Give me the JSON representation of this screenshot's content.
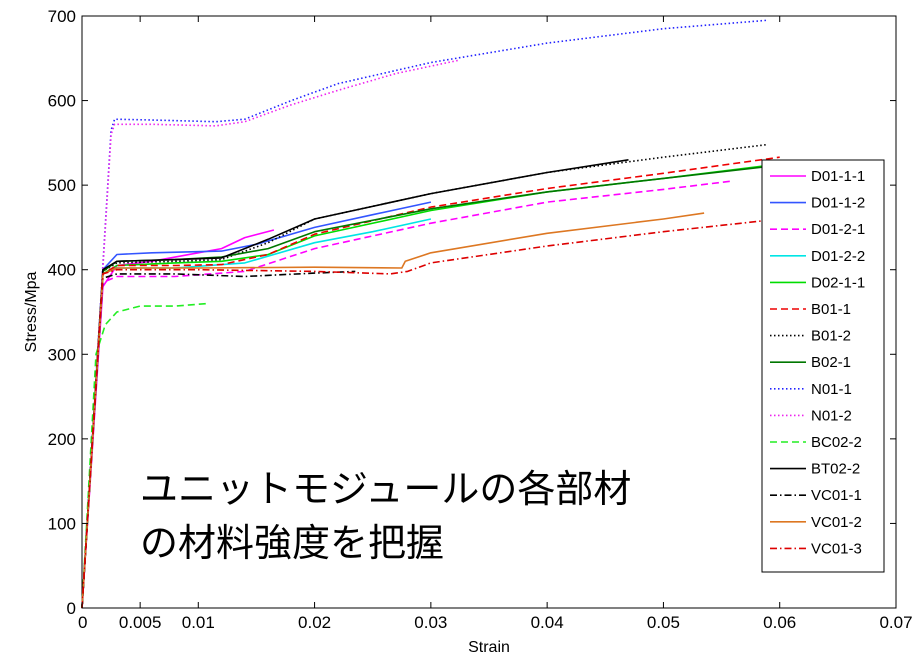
{
  "chart_data": {
    "type": "line",
    "title": "",
    "xlabel": "Strain",
    "ylabel": "Stress/Mpa",
    "xlim": [
      0,
      0.07
    ],
    "ylim": [
      0,
      700
    ],
    "xticks": [
      0,
      0.005,
      0.01,
      0.02,
      0.03,
      0.04,
      0.05,
      0.06,
      0.07
    ],
    "xtick_labels": [
      "0",
      "0.005",
      "0.01",
      "0.02",
      "0.03",
      "0.04",
      "0.05",
      "0.06",
      "0.07"
    ],
    "yticks": [
      0,
      100,
      200,
      300,
      400,
      500,
      600,
      700
    ],
    "ytick_labels": [
      "0",
      "100",
      "200",
      "300",
      "400",
      "500",
      "600",
      "700"
    ],
    "grid": false,
    "legend_position": "right",
    "annotation": [
      "ユニットモジュールの各部材",
      "の材料強度を把握"
    ],
    "series": [
      {
        "name": "D01-1-1",
        "color": "#ff00ff",
        "dash": "solid",
        "x": [
          0,
          0.0018,
          0.003,
          0.006,
          0.01,
          0.012,
          0.014,
          0.0165
        ],
        "y": [
          0,
          380,
          405,
          410,
          420,
          425,
          438,
          447
        ]
      },
      {
        "name": "D01-1-2",
        "color": "#3355ff",
        "dash": "solid",
        "x": [
          0,
          0.0018,
          0.003,
          0.006,
          0.012,
          0.015,
          0.02,
          0.025,
          0.03
        ],
        "y": [
          0,
          400,
          418,
          420,
          422,
          430,
          450,
          465,
          480
        ]
      },
      {
        "name": "D01-2-1",
        "color": "#ff00ff",
        "dash": "dash",
        "x": [
          0,
          0.0018,
          0.003,
          0.008,
          0.014,
          0.02,
          0.03,
          0.04,
          0.05,
          0.056
        ],
        "y": [
          0,
          385,
          392,
          392,
          398,
          425,
          455,
          480,
          495,
          505
        ]
      },
      {
        "name": "D01-2-2",
        "color": "#00e5e5",
        "dash": "solid",
        "x": [
          0,
          0.0018,
          0.003,
          0.008,
          0.014,
          0.02,
          0.025,
          0.03
        ],
        "y": [
          0,
          395,
          402,
          402,
          408,
          432,
          445,
          460
        ]
      },
      {
        "name": "D02-1-1",
        "color": "#00dd00",
        "dash": "solid",
        "x": [
          0,
          0.0018,
          0.003,
          0.008,
          0.012,
          0.016,
          0.02,
          0.03,
          0.04,
          0.05,
          0.06
        ],
        "y": [
          0,
          395,
          405,
          408,
          410,
          418,
          440,
          470,
          492,
          508,
          525
        ]
      },
      {
        "name": "B01-1",
        "color": "#ee0000",
        "dash": "dash",
        "x": [
          0,
          0.0018,
          0.003,
          0.008,
          0.012,
          0.016,
          0.02,
          0.03,
          0.04,
          0.05,
          0.06
        ],
        "y": [
          0,
          395,
          405,
          405,
          406,
          418,
          442,
          474,
          496,
          514,
          533
        ]
      },
      {
        "name": "B01-2",
        "color": "#000000",
        "dash": "dot",
        "x": [
          0,
          0.0018,
          0.003,
          0.008,
          0.012,
          0.016,
          0.02,
          0.03,
          0.04,
          0.05,
          0.059
        ],
        "y": [
          0,
          398,
          408,
          410,
          412,
          432,
          460,
          490,
          515,
          533,
          548
        ]
      },
      {
        "name": "B02-1",
        "color": "#007700",
        "dash": "solid",
        "x": [
          0,
          0.0018,
          0.003,
          0.008,
          0.012,
          0.016,
          0.02,
          0.03,
          0.04,
          0.05,
          0.059
        ],
        "y": [
          0,
          398,
          410,
          412,
          415,
          425,
          445,
          472,
          492,
          508,
          522
        ]
      },
      {
        "name": "N01-1",
        "color": "#2222ff",
        "dash": "dot",
        "x": [
          0,
          0.0025,
          0.0028,
          0.006,
          0.0115,
          0.014,
          0.018,
          0.022,
          0.03,
          0.04,
          0.05,
          0.059
        ],
        "y": [
          0,
          565,
          578,
          577,
          575,
          578,
          600,
          620,
          645,
          668,
          685,
          695
        ]
      },
      {
        "name": "N01-2",
        "color": "#ee22ee",
        "dash": "dot",
        "x": [
          0,
          0.0025,
          0.0028,
          0.006,
          0.0115,
          0.014,
          0.018,
          0.022,
          0.027,
          0.0325
        ],
        "y": [
          0,
          560,
          572,
          572,
          570,
          575,
          595,
          612,
          632,
          648
        ]
      },
      {
        "name": "BC02-2",
        "color": "#22ee22",
        "dash": "dash",
        "x": [
          0,
          0.0012,
          0.002,
          0.003,
          0.005,
          0.008,
          0.0108
        ],
        "y": [
          0,
          300,
          335,
          350,
          357,
          357,
          360
        ]
      },
      {
        "name": "BT02-2",
        "color": "#000000",
        "dash": "solid",
        "x": [
          0,
          0.0018,
          0.003,
          0.008,
          0.012,
          0.016,
          0.02,
          0.03,
          0.04,
          0.047
        ],
        "y": [
          0,
          400,
          410,
          412,
          414,
          436,
          460,
          490,
          515,
          530
        ]
      },
      {
        "name": "VC01-1",
        "color": "#000000",
        "dash": "dashdot",
        "x": [
          0,
          0.0018,
          0.003,
          0.008,
          0.014,
          0.02,
          0.0235
        ],
        "y": [
          0,
          390,
          395,
          395,
          392,
          396,
          398
        ]
      },
      {
        "name": "VC01-2",
        "color": "#dd7722",
        "dash": "solid",
        "x": [
          0,
          0.0018,
          0.003,
          0.01,
          0.02,
          0.0275,
          0.0278,
          0.03,
          0.04,
          0.05,
          0.0535
        ],
        "y": [
          0,
          395,
          402,
          402,
          403,
          402,
          410,
          420,
          443,
          460,
          467
        ]
      },
      {
        "name": "VC01-3",
        "color": "#dd0000",
        "dash": "dashdot",
        "x": [
          0,
          0.0018,
          0.003,
          0.01,
          0.02,
          0.0265,
          0.028,
          0.03,
          0.04,
          0.05,
          0.06
        ],
        "y": [
          0,
          395,
          400,
          400,
          398,
          395,
          398,
          408,
          428,
          445,
          460
        ]
      }
    ]
  }
}
